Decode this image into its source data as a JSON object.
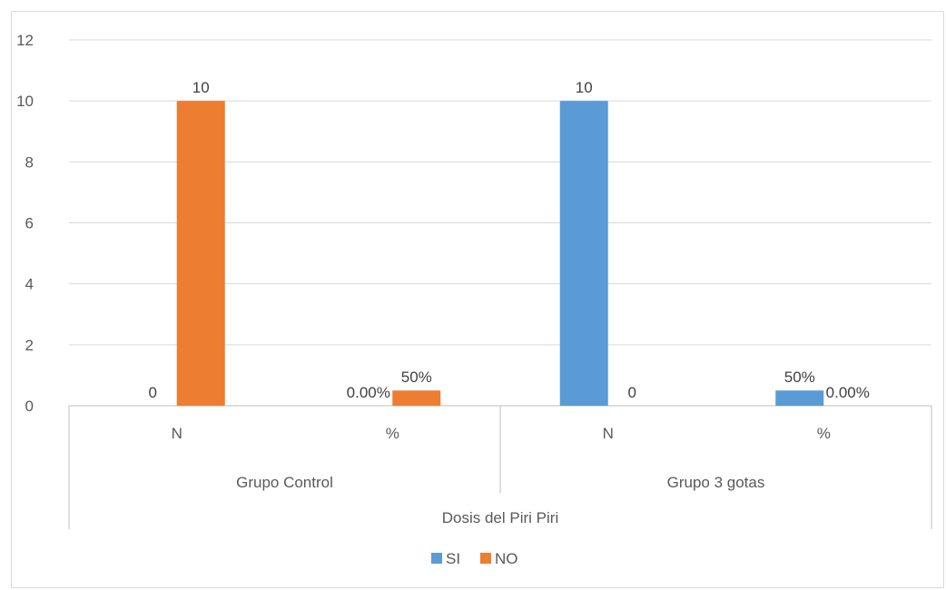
{
  "chart_data": {
    "type": "bar",
    "title": "",
    "ylim": [
      0,
      12
    ],
    "yticks": [
      "0",
      "2",
      "4",
      "6",
      "8",
      "10",
      "12"
    ],
    "grid": true,
    "legend_position": "bottom",
    "categories": [
      "N",
      "%",
      "N",
      "%"
    ],
    "groups": [
      {
        "label": "Grupo Control",
        "span": [
          0,
          1
        ]
      },
      {
        "label": "Grupo 3 gotas",
        "span": [
          2,
          3
        ]
      }
    ],
    "outer_label": "Dosis del Piri Piri",
    "series": [
      {
        "name": "SI",
        "color": "#5B9BD5",
        "values": [
          0,
          0,
          10,
          0.5
        ],
        "labels": [
          "0",
          "0.00%",
          "10",
          "50%"
        ]
      },
      {
        "name": "NO",
        "color": "#ED7D31",
        "values": [
          10,
          0.5,
          0,
          0
        ],
        "labels": [
          "10",
          "50%",
          "0",
          "0.00%"
        ]
      }
    ]
  }
}
